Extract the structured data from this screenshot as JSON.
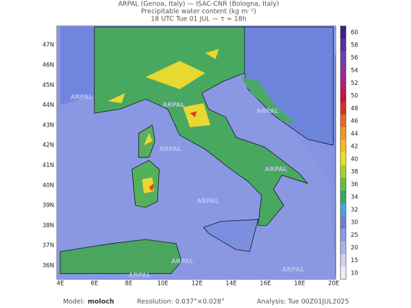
{
  "header": {
    "line1": "ARPAL (Genoa, Italy)  —  ISAC-CNR (Bologna, Italy)",
    "line2": "Precipitable water content (kg m⁻²)",
    "line3": "18 UTC Tue 01 JUL  —  τ = 18h"
  },
  "map": {
    "lon_labels": [
      "4E",
      "6E",
      "8E",
      "10E",
      "12E",
      "14E",
      "16E",
      "18E",
      "20E"
    ],
    "lat_labels": [
      "36N",
      "37N",
      "38N",
      "39N",
      "40N",
      "41N",
      "42N",
      "43N",
      "44N",
      "45N",
      "46N",
      "47N"
    ],
    "watermark": "ARPAL"
  },
  "colorbar": {
    "labels": [
      10,
      15,
      20,
      25,
      30,
      32,
      34,
      36,
      38,
      40,
      42,
      44,
      46,
      48,
      50,
      52,
      54,
      56,
      58,
      60
    ]
  },
  "footer": {
    "model_label": "Model:",
    "model": "moloch",
    "resolution": "Resolution: 0.037°×0.028°",
    "analysis": "Analysis: Tue 00Z01JUL2025"
  }
}
